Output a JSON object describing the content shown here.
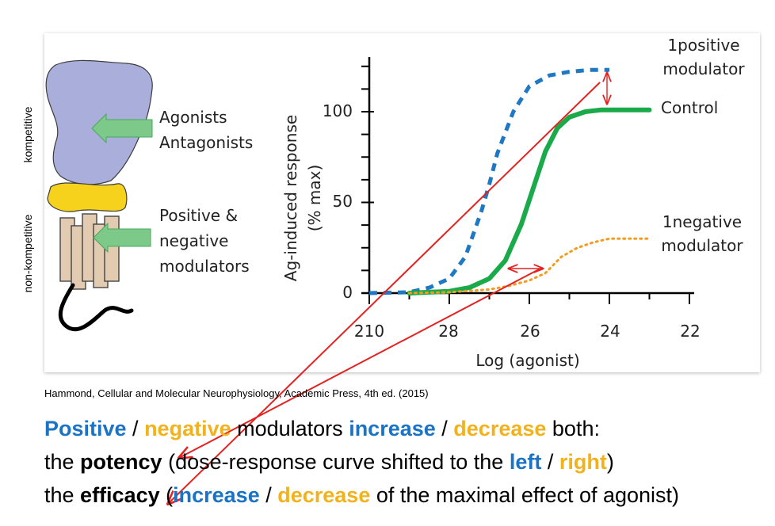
{
  "side_labels": {
    "top": "kompetitive",
    "bottom": "non-kompetitive"
  },
  "diagram_labels": {
    "agonists": "Agonists",
    "antagonists": "Antagonists",
    "positive": "Positive &",
    "negative": "negative",
    "modulators": "modulators"
  },
  "chart_data": {
    "type": "line",
    "xlabel": "Log  (agonist)",
    "ylabel_line1": "Ag-induced response",
    "ylabel_line2": "(% max)",
    "x_ticks": [
      "210",
      "28",
      "26",
      "24",
      "22"
    ],
    "y_ticks": [
      "0",
      "50",
      "100"
    ],
    "ylim": [
      0,
      125
    ],
    "series": [
      {
        "name": "1positive modulator",
        "style": "dashed",
        "color": "#1f78c4",
        "x": [
          10,
          9,
          8.5,
          8,
          7.6,
          7.2,
          7,
          6.8,
          6.4,
          6,
          5.5,
          5,
          4.5,
          4
        ],
        "y": [
          0,
          0.5,
          3,
          8,
          20,
          45,
          60,
          77,
          100,
          114,
          120,
          122,
          123,
          123
        ]
      },
      {
        "name": "Control",
        "style": "solid",
        "color": "#1aaa4a",
        "x": [
          9,
          8,
          7.5,
          7,
          6.6,
          6.2,
          5.9,
          5.6,
          5.3,
          5,
          4.6,
          4.2,
          3.5,
          3
        ],
        "y": [
          0,
          1,
          3,
          8,
          18,
          38,
          58,
          78,
          91,
          97,
          100,
          101,
          101,
          101
        ]
      },
      {
        "name": "1negative modulator",
        "style": "dotted",
        "color": "#f39c22",
        "x": [
          9,
          8,
          7,
          6.5,
          6,
          5.6,
          5.2,
          4.8,
          4.4,
          4,
          3.5,
          3
        ],
        "y": [
          0,
          0.5,
          2,
          4,
          7,
          11,
          20,
          25,
          28,
          30,
          30,
          30
        ]
      }
    ],
    "curve_labels": {
      "positive_line1": "1positive",
      "positive_line2": "modulator",
      "control": "Control",
      "negative_line1": "1negative",
      "negative_line2": "modulator"
    }
  },
  "credit": "Hammond, Cellular and Molecular Neurophysiology, Academic Press, 4th ed. (2015)",
  "summary": {
    "l1_pos": "Positive",
    "l1_sep": " / ",
    "l1_neg": "negative",
    "l1_mid": " modulators ",
    "l1_inc": "increase",
    "l1_sep2": " / ",
    "l1_dec": "decrease",
    "l1_end": " both:",
    "l2_a": "the ",
    "l2_potency": "potency",
    "l2_b": " (dose-response curve shifted to the ",
    "l2_left": "left",
    "l2_sep": " / ",
    "l2_right": "right",
    "l2_end": ")",
    "l3_a": "the ",
    "l3_efficacy": "efficacy",
    "l3_b": " (",
    "l3_inc": "increase",
    "l3_sep": " / ",
    "l3_dec": "decrease",
    "l3_end": " of the maximal effect of agonist)"
  },
  "colors": {
    "receptor": "#a9aedb",
    "membrane": "#f7d21c",
    "segments": "#e3cbb1",
    "arrow_green": "#7cc98a",
    "annotation_red": "#e32222"
  }
}
